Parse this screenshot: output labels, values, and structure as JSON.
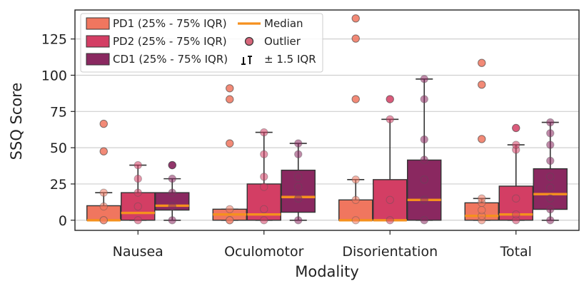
{
  "chart_data": {
    "type": "box",
    "xlabel": "Modality",
    "ylabel": "SSQ Score",
    "ylim": [
      -7,
      145
    ],
    "yticks": [
      0,
      25,
      50,
      75,
      100,
      125
    ],
    "grid": "horizontal",
    "legend_position": "top-left",
    "categories": [
      "Nausea",
      "Oculomotor",
      "Disorientation",
      "Total"
    ],
    "series": [
      {
        "name": "PD1 (25% - 75% IQR)",
        "color": "#f0765f",
        "boxes": [
          {
            "q1": 0,
            "median": 0,
            "q3": 10,
            "whisker_low": 0,
            "whisker_high": 19,
            "points": [
              0,
              0,
              9.5,
              19
            ],
            "outliers": [
              47.5,
              66.5
            ]
          },
          {
            "q1": 0,
            "median": 4,
            "q3": 7.6,
            "whisker_low": 0,
            "whisker_high": 7.6,
            "points": [
              0,
              0,
              7.6
            ],
            "outliers": [
              53,
              83.4,
              91
            ]
          },
          {
            "q1": 0,
            "median": 0,
            "q3": 14,
            "whisker_low": 0,
            "whisker_high": 28,
            "points": [
              0,
              14,
              28
            ],
            "outliers": [
              83.5,
              125.3,
              139.2
            ]
          },
          {
            "q1": 0,
            "median": 3,
            "q3": 12,
            "whisker_low": 0,
            "whisker_high": 15,
            "points": [
              0,
              3,
              7,
              12,
              15
            ],
            "outliers": [
              56,
              93.5,
              108.5
            ]
          }
        ]
      },
      {
        "name": "PD2 (25% - 75% IQR)",
        "color": "#d33e64",
        "boxes": [
          {
            "q1": 0,
            "median": 5,
            "q3": 19,
            "whisker_low": 0,
            "whisker_high": 38,
            "points": [
              0,
              9.5,
              19,
              28.6,
              38
            ],
            "outliers": []
          },
          {
            "q1": 0,
            "median": 4,
            "q3": 25,
            "whisker_low": 0,
            "whisker_high": 60.6,
            "points": [
              0,
              7.6,
              23,
              30,
              45.5,
              60.6
            ],
            "outliers": []
          },
          {
            "q1": 0,
            "median": 0,
            "q3": 28,
            "whisker_low": 0,
            "whisker_high": 69.6,
            "points": [
              0,
              14,
              69.6
            ],
            "outliers": [
              83.5
            ]
          },
          {
            "q1": 0,
            "median": 4,
            "q3": 23.5,
            "whisker_low": 0,
            "whisker_high": 52,
            "points": [
              0,
              4,
              15,
              48.6,
              52
            ],
            "outliers": [
              63.6
            ]
          }
        ]
      },
      {
        "name": "CD1 (25% - 75% IQR)",
        "color": "#8a2860",
        "boxes": [
          {
            "q1": 7,
            "median": 10,
            "q3": 19,
            "whisker_low": 0,
            "whisker_high": 28.6,
            "points": [
              0,
              9.5,
              19,
              28.6,
              38
            ],
            "outliers": [
              38
            ]
          },
          {
            "q1": 5.5,
            "median": 16,
            "q3": 34.5,
            "whisker_low": 0,
            "whisker_high": 53,
            "points": [
              0,
              15,
              23,
              30,
              45.5,
              53
            ],
            "outliers": []
          },
          {
            "q1": 0,
            "median": 14,
            "q3": 41.5,
            "whisker_low": 0,
            "whisker_high": 97.4,
            "points": [
              0,
              14,
              28,
              41.7,
              55.7,
              83.5,
              97.4
            ],
            "outliers": []
          },
          {
            "q1": 7.5,
            "median": 18,
            "q3": 35.5,
            "whisker_low": 0,
            "whisker_high": 67.5,
            "points": [
              0,
              7.5,
              15,
              22.5,
              30,
              41,
              52,
              60,
              67.5
            ],
            "outliers": []
          }
        ]
      }
    ],
    "legend": {
      "box_entries": [
        "PD1 (25% - 75% IQR)",
        "PD2 (25% - 75% IQR)",
        "CD1 (25% - 75% IQR)"
      ],
      "median": "Median",
      "outlier": "Outlier",
      "whisker": "± 1.5 IQR"
    },
    "median_color": "#f5901e"
  }
}
